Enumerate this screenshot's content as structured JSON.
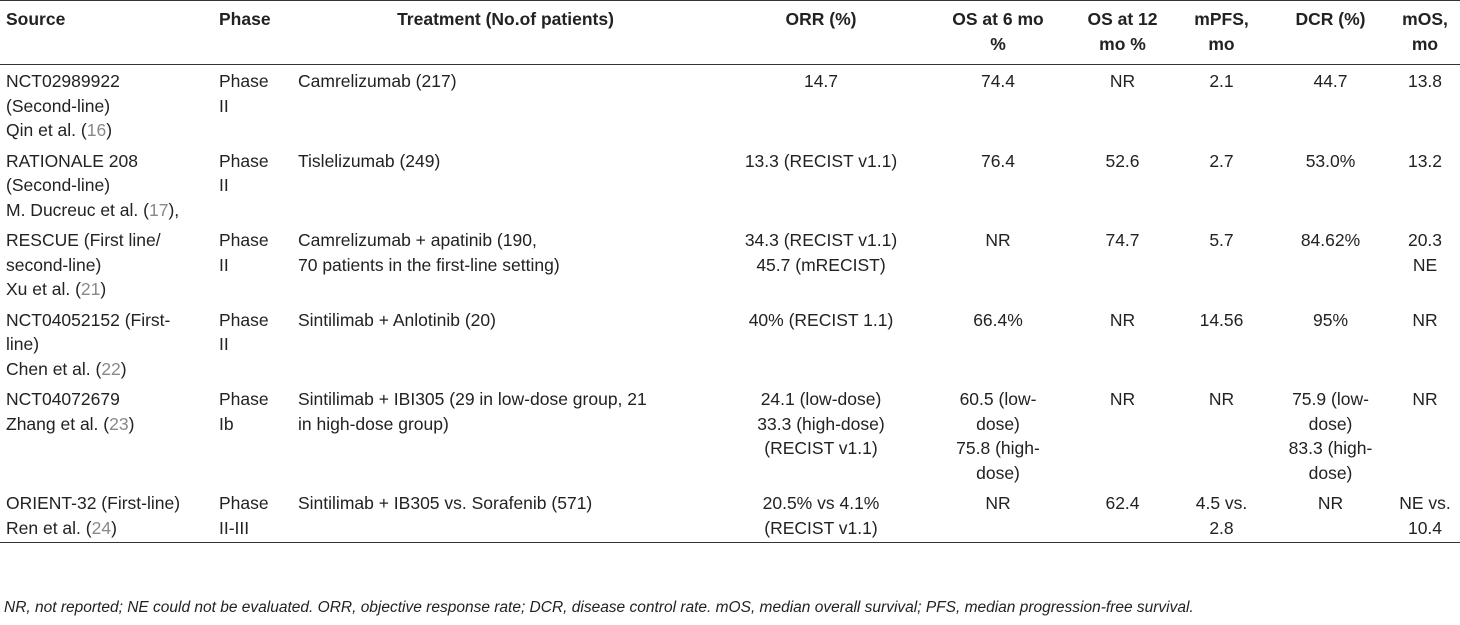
{
  "headers": [
    "Source",
    "Phase",
    "Treatment (No.of patients)",
    "ORR (%)",
    "OS at 6 mo\n%",
    "OS at 12\nmo %",
    "mPFS,\nmo",
    "DCR (%)",
    "mOS,\nmo"
  ],
  "rows": [
    {
      "source_text": "NCT02989922\n(Second-line)\nQin et al. (",
      "source_ref": "16",
      "source_end": ")",
      "phase": "Phase\nII",
      "treatment": "Camrelizumab (217)",
      "orr": "14.7",
      "os6": "74.4",
      "os12": "NR",
      "mpfs": "2.1",
      "dcr": "44.7",
      "mos": "13.8"
    },
    {
      "source_text": "RATIONALE 208\n(Second-line)\nM. Ducreuc et al. (",
      "source_ref": "17",
      "source_end": "),",
      "phase": "Phase\nII",
      "treatment": "Tislelizumab (249)",
      "orr": "13.3 (RECIST v1.1)",
      "os6": "76.4",
      "os12": "52.6",
      "mpfs": "2.7",
      "dcr": "53.0%",
      "mos": "13.2"
    },
    {
      "source_text": "RESCUE (First line/\nsecond-line)\nXu et al. (",
      "source_ref": "21",
      "source_end": ")",
      "phase": "Phase\nII",
      "treatment": "Camrelizumab + apatinib (190,\n70 patients in the first-line setting)",
      "orr": "34.3 (RECIST v1.1)\n45.7 (mRECIST)",
      "os6": "NR",
      "os12": "74.7",
      "mpfs": "5.7",
      "dcr": "84.62%",
      "mos": "20.3\nNE"
    },
    {
      "source_text": "NCT04052152 (First-\nline)\nChen et al. (",
      "source_ref": "22",
      "source_end": ")",
      "phase": "Phase\nII",
      "treatment": "Sintilimab + Anlotinib (20)",
      "orr": "40% (RECIST 1.1)",
      "os6": "66.4%",
      "os12": "NR",
      "mpfs": "14.56",
      "dcr": "95%",
      "mos": "NR"
    },
    {
      "source_text": "NCT04072679\nZhang et al. (",
      "source_ref": "23",
      "source_end": ")",
      "phase": "Phase\nIb",
      "treatment": "Sintilimab + IBI305 (29 in low-dose group, 21\nin high-dose group)",
      "orr": "24.1 (low-dose)\n33.3 (high-dose)\n(RECIST v1.1)",
      "os6": "60.5 (low-\ndose)\n75.8 (high-\ndose)",
      "os12": "NR",
      "mpfs": "NR",
      "dcr": "75.9 (low-\ndose)\n83.3 (high-\ndose)",
      "mos": "NR"
    },
    {
      "source_text": "ORIENT-32 (First-line)\nRen et al. (",
      "source_ref": "24",
      "source_end": ")",
      "phase": "Phase\nII-III",
      "treatment": "Sintilimab + IB305 vs. Sorafenib (571)",
      "orr": "20.5% vs 4.1%\n(RECIST v1.1)",
      "os6": "NR",
      "os12": "62.4",
      "mpfs": "4.5 vs.\n2.8",
      "dcr": "NR",
      "mos": "NE vs.\n10.4"
    }
  ],
  "footnote": "NR, not reported; NE could not be evaluated. ORR, objective response rate; DCR, disease control rate. mOS, median overall survival; PFS, median progression-free survival."
}
